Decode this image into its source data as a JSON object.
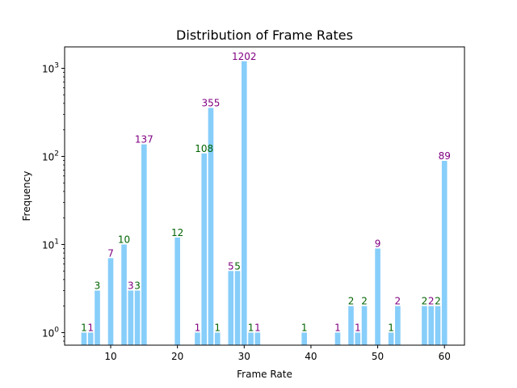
{
  "chart_data": {
    "type": "bar",
    "title": "Distribution of Frame Rates",
    "xlabel": "Frame Rate",
    "ylabel": "Frequency",
    "yscale": "log",
    "xlim": [
      3.1,
      63.0
    ],
    "ylim": [
      0.72,
      1750
    ],
    "xticks": [
      10,
      20,
      30,
      40,
      50,
      60
    ],
    "yticks": [
      {
        "value": 1,
        "base": "10",
        "exp": "0"
      },
      {
        "value": 10,
        "base": "10",
        "exp": "1"
      },
      {
        "value": 100,
        "base": "10",
        "exp": "2"
      },
      {
        "value": 1000,
        "base": "10",
        "exp": "3"
      }
    ],
    "bar_color": "#87CEFA",
    "label_colors": [
      "#006400",
      "#800080"
    ],
    "bars": [
      {
        "x": 6,
        "y": 1,
        "label": "1"
      },
      {
        "x": 7,
        "y": 1,
        "label": "1"
      },
      {
        "x": 8,
        "y": 3,
        "label": "3"
      },
      {
        "x": 10,
        "y": 7,
        "label": "7"
      },
      {
        "x": 12,
        "y": 10,
        "label": "10"
      },
      {
        "x": 13,
        "y": 3,
        "label": "3"
      },
      {
        "x": 14,
        "y": 3,
        "label": "3"
      },
      {
        "x": 15,
        "y": 137,
        "label": "137"
      },
      {
        "x": 20,
        "y": 12,
        "label": "12"
      },
      {
        "x": 23,
        "y": 1,
        "label": "1"
      },
      {
        "x": 24,
        "y": 108,
        "label": "108"
      },
      {
        "x": 25,
        "y": 355,
        "label": "355"
      },
      {
        "x": 26,
        "y": 1,
        "label": "1"
      },
      {
        "x": 28,
        "y": 5,
        "label": "5"
      },
      {
        "x": 29,
        "y": 5,
        "label": "5"
      },
      {
        "x": 30,
        "y": 1202,
        "label": "1202"
      },
      {
        "x": 31,
        "y": 1,
        "label": "1"
      },
      {
        "x": 32,
        "y": 1,
        "label": "1"
      },
      {
        "x": 39,
        "y": 1,
        "label": "1"
      },
      {
        "x": 44,
        "y": 1,
        "label": "1"
      },
      {
        "x": 46,
        "y": 2,
        "label": "2"
      },
      {
        "x": 47,
        "y": 1,
        "label": "1"
      },
      {
        "x": 48,
        "y": 2,
        "label": "2"
      },
      {
        "x": 50,
        "y": 9,
        "label": "9"
      },
      {
        "x": 52,
        "y": 1,
        "label": "1"
      },
      {
        "x": 53,
        "y": 2,
        "label": "2"
      },
      {
        "x": 57,
        "y": 2,
        "label": "2"
      },
      {
        "x": 58,
        "y": 2,
        "label": "2"
      },
      {
        "x": 59,
        "y": 2,
        "label": "2"
      },
      {
        "x": 60,
        "y": 89,
        "label": "89"
      }
    ]
  }
}
